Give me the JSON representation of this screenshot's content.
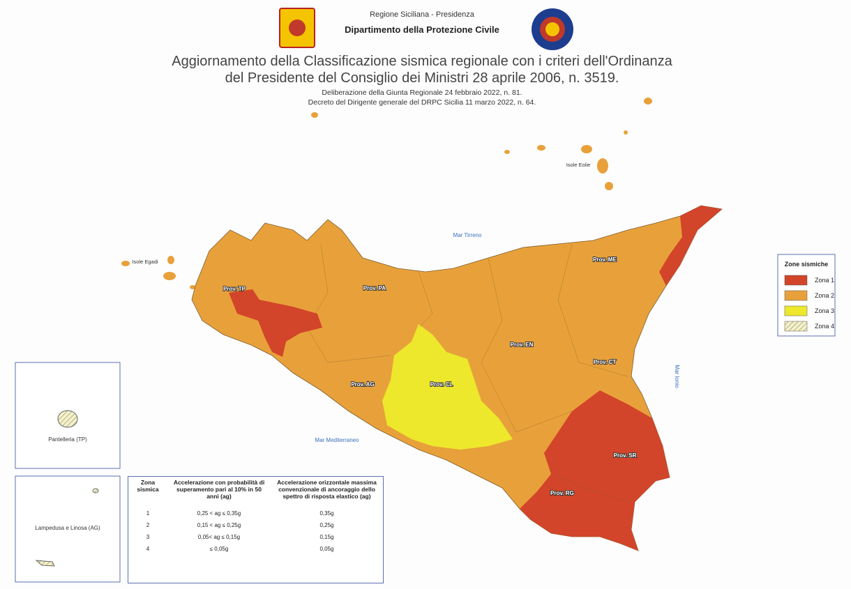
{
  "header": {
    "org": "Regione Siciliana - Presidenza",
    "department": "Dipartimento della Protezione Civile",
    "title": [
      "Aggiornamento della Classificazione sismica regionale con i criteri dell'Ordinanza",
      "del Presidente del Consiglio dei Ministri 28 aprile 2006, n. 3519."
    ],
    "subtitle": [
      "Deliberazione della Giunta Regionale 24 febbraio 2022, n. 81.",
      "Decreto del Dirigente generale del DRPC Sicilia 11 marzo 2022, n. 64."
    ]
  },
  "map": {
    "seas": [
      "Mar Tirreno",
      "Mar Ionio",
      "Mar Mediterraneo"
    ],
    "islands": [
      "Isole Eolie",
      "Isole Egadi"
    ],
    "provinces": [
      "Prov. TP",
      "Prov. PA",
      "Prov. ME",
      "Prov. EN",
      "Prov. CT",
      "Prov. AG",
      "Prov. CL",
      "Prov. SR",
      "Prov. RG"
    ],
    "insets": [
      "Pantelleria (TP)",
      "Lampedusa e Linosa (AG)"
    ]
  },
  "legend": {
    "title": "Zone sismiche",
    "items": [
      {
        "label": "Zona 1",
        "color": "#d2452a"
      },
      {
        "label": "Zona 2",
        "color": "#e8a13a"
      },
      {
        "label": "Zona 3",
        "color": "#ede82c"
      },
      {
        "label": "Zona 4",
        "color": "#f4f0c8"
      }
    ]
  },
  "table": {
    "header": [
      "Zona sismica",
      "Accelerazione con probabilità di superamento pari al 10% in 50 anni (ag)",
      "Accelerazione orizzontale massima convenzionale di ancoraggio dello spettro di risposta elastico (ag)"
    ],
    "rows": [
      [
        "1",
        "0,25 < ag ≤ 0,35g",
        "0,35g"
      ],
      [
        "2",
        "0,15 < ag ≤ 0,25g",
        "0,25g"
      ],
      [
        "3",
        "0,05< ag ≤ 0,15g",
        "0,15g"
      ],
      [
        "4",
        "≤ 0,05g",
        "0,05g"
      ]
    ]
  }
}
